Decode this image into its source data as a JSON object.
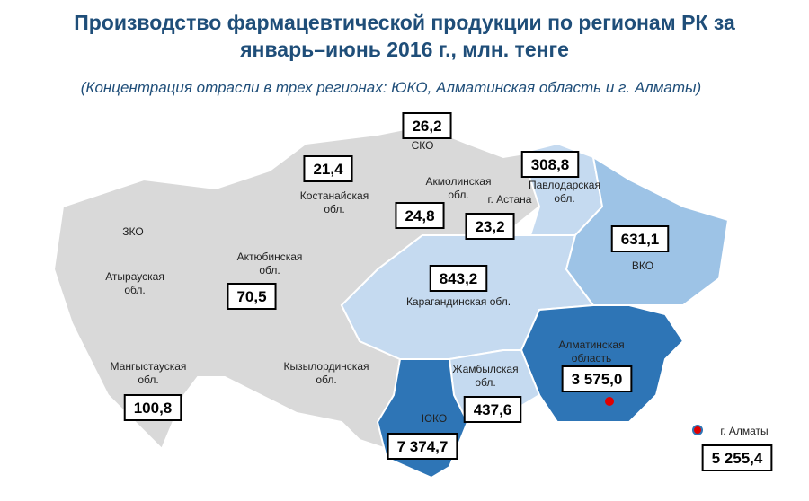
{
  "header": {
    "title_lines": [
      "Производство фармацевтической продукции по регионам РК за",
      "январь–июнь 2016 г., млн. тенге"
    ],
    "subtitle": "(Концентрация отрасли в трех регионах: ЮКО, Алматинская область и г. Алматы)"
  },
  "regions": [
    {
      "name_lines": [
        "ЗКО"
      ]
    },
    {
      "name_lines": [
        "Атырауская",
        "обл."
      ]
    },
    {
      "name_lines": [
        "Мангыстауская",
        "обл."
      ],
      "value": "100,8"
    },
    {
      "name_lines": [
        "Актюбинская",
        "обл."
      ],
      "value": "70,5"
    },
    {
      "name_lines": [
        "Костанайская",
        "обл."
      ],
      "value": "21,4"
    },
    {
      "name_lines": [
        "СКО"
      ],
      "value": "26,2"
    },
    {
      "name_lines": [
        "Акмолинская",
        "обл."
      ],
      "value": "24,8"
    },
    {
      "name_lines": [
        "г. Астана"
      ],
      "value": "23,2"
    },
    {
      "name_lines": [
        "Павлодарская",
        "обл."
      ],
      "value": "308,8"
    },
    {
      "name_lines": [
        "ВКО"
      ],
      "value": "631,1"
    },
    {
      "name_lines": [
        "Карагандинская обл."
      ],
      "value": "843,2"
    },
    {
      "name_lines": [
        "Кызылординская",
        "обл."
      ]
    },
    {
      "name_lines": [
        "Жамбылская",
        "обл."
      ],
      "value": "437,6"
    },
    {
      "name_lines": [
        "ЮКО"
      ],
      "value": "7 374,7"
    },
    {
      "name_lines": [
        "Алматинская",
        "область"
      ],
      "value": "3 575,0"
    },
    {
      "name_lines": [
        "г. Алматы"
      ],
      "value": "5 255,4"
    }
  ]
}
